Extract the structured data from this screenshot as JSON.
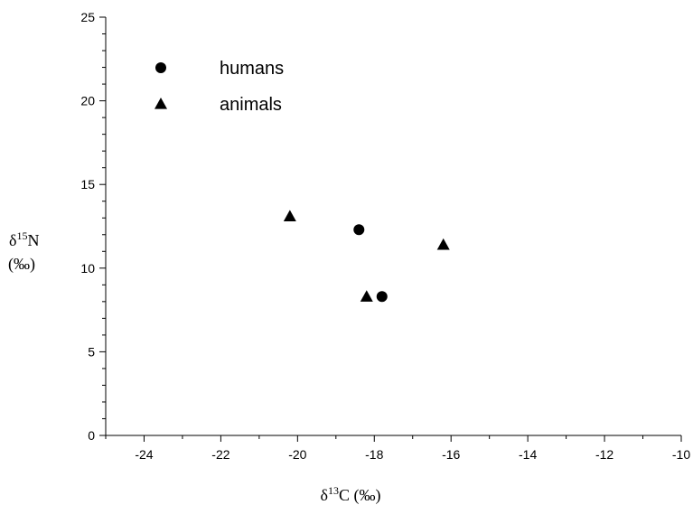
{
  "chart_data": {
    "type": "scatter",
    "xlabel": {
      "delta": "δ",
      "sup": "13",
      "rest": "C (‰)"
    },
    "ylabel": {
      "delta": "δ",
      "sup": "15",
      "rest": "N",
      "unit": "(‰)"
    },
    "xlim": [
      -25,
      -10
    ],
    "ylim": [
      0,
      25
    ],
    "xticks": [
      -24,
      -22,
      -20,
      -18,
      -16,
      -14,
      -12,
      -10
    ],
    "yticks": [
      0,
      5,
      10,
      15,
      20,
      25
    ],
    "grid": false,
    "legend_position": "top-left",
    "series": [
      {
        "name": "humans",
        "marker": "circle",
        "color": "#000000",
        "points": [
          {
            "x": -18.4,
            "y": 12.3
          },
          {
            "x": -17.8,
            "y": 8.3
          }
        ]
      },
      {
        "name": "animals",
        "marker": "triangle",
        "color": "#000000",
        "points": [
          {
            "x": -20.2,
            "y": 13.1
          },
          {
            "x": -18.2,
            "y": 8.3
          },
          {
            "x": -16.2,
            "y": 11.4
          }
        ]
      }
    ]
  }
}
